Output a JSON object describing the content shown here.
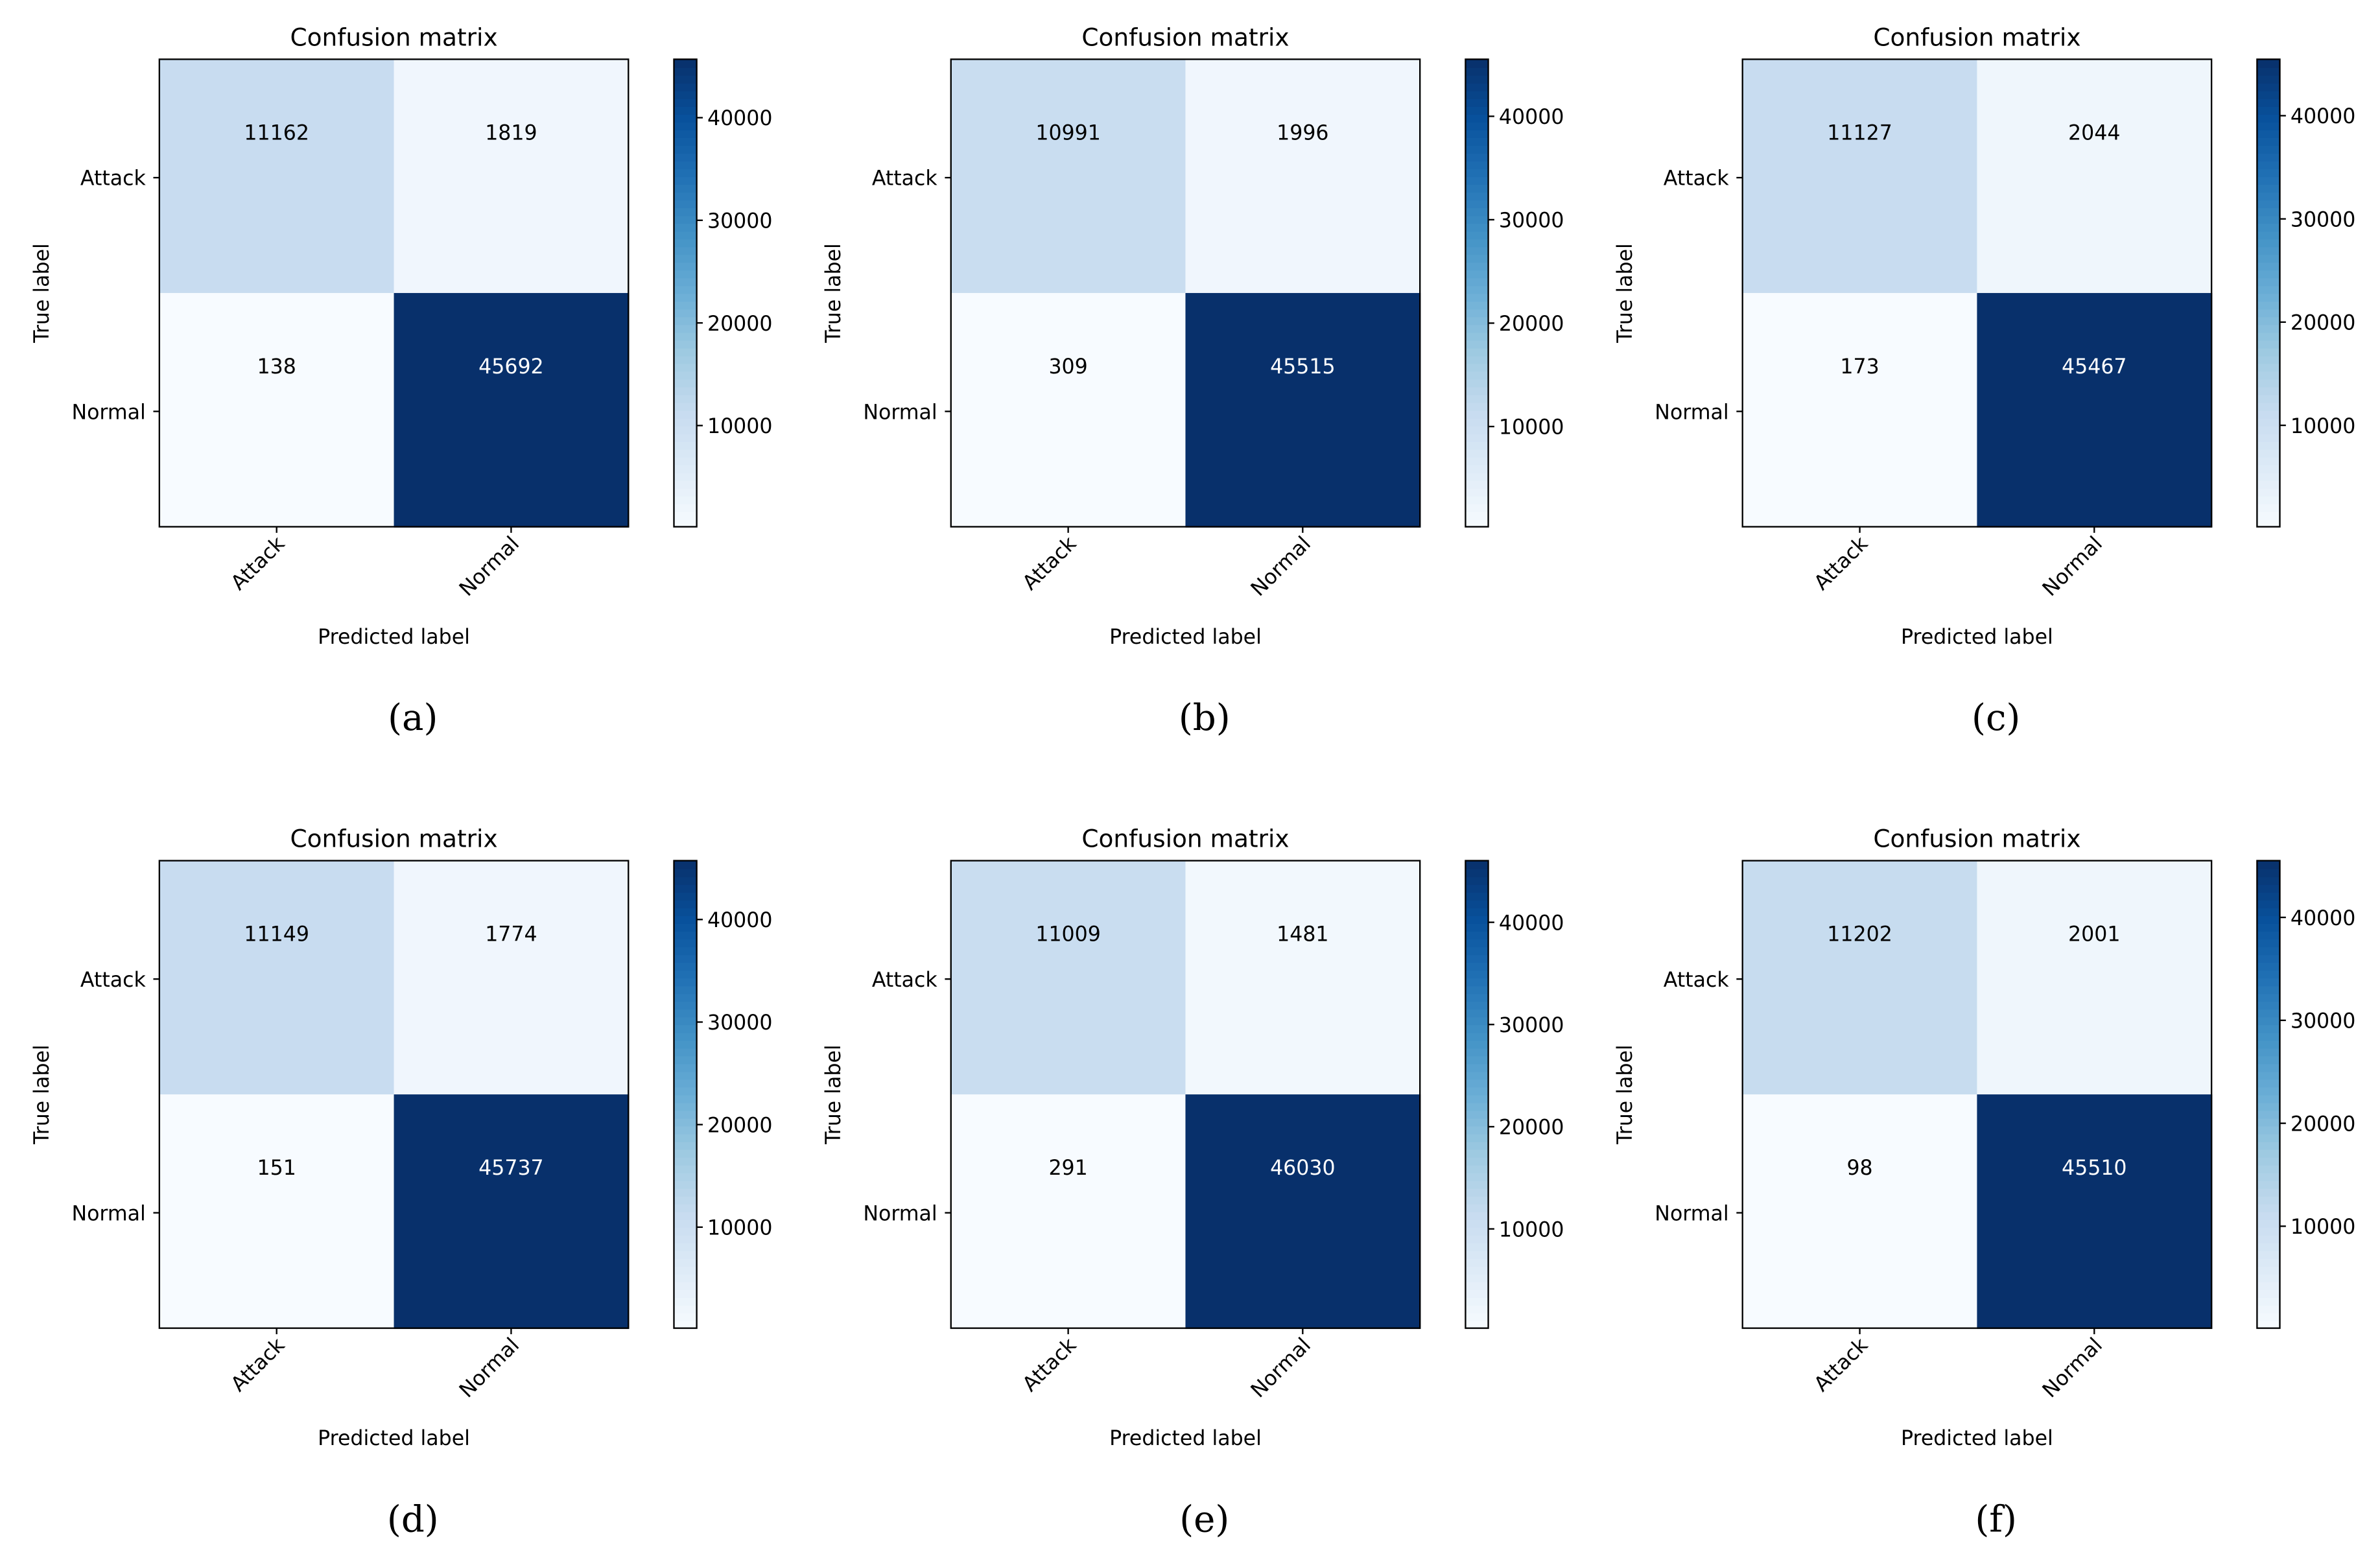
{
  "chart_data": [
    {
      "type": "heatmap",
      "caption": "(a)",
      "title": "Confusion matrix",
      "xlabel": "Predicted label",
      "ylabel": "True label",
      "row_labels": [
        "Attack",
        "Normal"
      ],
      "col_labels": [
        "Attack",
        "Normal"
      ],
      "values": [
        [
          11162,
          1819
        ],
        [
          138,
          45692
        ]
      ],
      "colorbar_ticks": [
        10000,
        20000,
        30000,
        40000
      ],
      "colormap": "Blues"
    },
    {
      "type": "heatmap",
      "caption": "(b)",
      "title": "Confusion matrix",
      "xlabel": "Predicted label",
      "ylabel": "True label",
      "row_labels": [
        "Attack",
        "Normal"
      ],
      "col_labels": [
        "Attack",
        "Normal"
      ],
      "values": [
        [
          10991,
          1996
        ],
        [
          309,
          45515
        ]
      ],
      "colorbar_ticks": [
        10000,
        20000,
        30000,
        40000
      ],
      "colormap": "Blues"
    },
    {
      "type": "heatmap",
      "caption": "(c)",
      "title": "Confusion matrix",
      "xlabel": "Predicted label",
      "ylabel": "True label",
      "row_labels": [
        "Attack",
        "Normal"
      ],
      "col_labels": [
        "Attack",
        "Normal"
      ],
      "values": [
        [
          11127,
          2044
        ],
        [
          173,
          45467
        ]
      ],
      "colorbar_ticks": [
        10000,
        20000,
        30000,
        40000
      ],
      "colormap": "Blues"
    },
    {
      "type": "heatmap",
      "caption": "(d)",
      "title": "Confusion matrix",
      "xlabel": "Predicted label",
      "ylabel": "True label",
      "row_labels": [
        "Attack",
        "Normal"
      ],
      "col_labels": [
        "Attack",
        "Normal"
      ],
      "values": [
        [
          11149,
          1774
        ],
        [
          151,
          45737
        ]
      ],
      "colorbar_ticks": [
        10000,
        20000,
        30000,
        40000
      ],
      "colormap": "Blues"
    },
    {
      "type": "heatmap",
      "caption": "(e)",
      "title": "Confusion matrix",
      "xlabel": "Predicted label",
      "ylabel": "True label",
      "row_labels": [
        "Attack",
        "Normal"
      ],
      "col_labels": [
        "Attack",
        "Normal"
      ],
      "values": [
        [
          11009,
          1481
        ],
        [
          291,
          46030
        ]
      ],
      "colorbar_ticks": [
        10000,
        20000,
        30000,
        40000
      ],
      "colormap": "Blues"
    },
    {
      "type": "heatmap",
      "caption": "(f)",
      "title": "Confusion matrix",
      "xlabel": "Predicted label",
      "ylabel": "True label",
      "row_labels": [
        "Attack",
        "Normal"
      ],
      "col_labels": [
        "Attack",
        "Normal"
      ],
      "values": [
        [
          11202,
          2001
        ],
        [
          98,
          45510
        ]
      ],
      "colorbar_ticks": [
        10000,
        20000,
        30000,
        40000
      ],
      "colormap": "Blues"
    }
  ]
}
